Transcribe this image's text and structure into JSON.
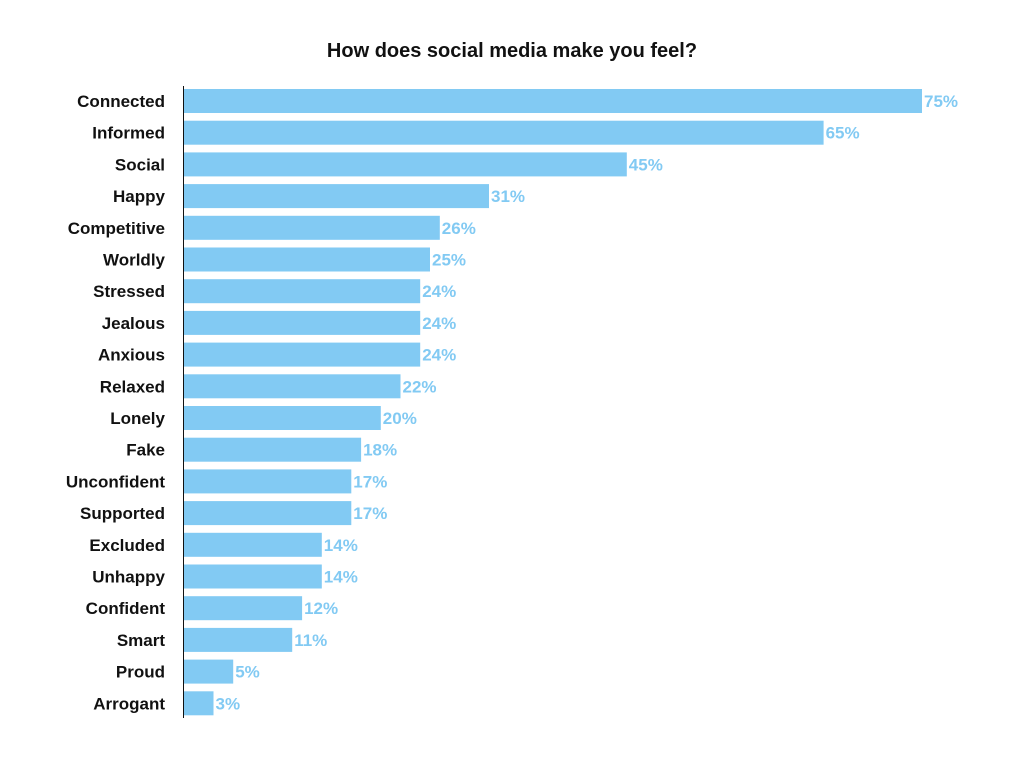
{
  "chart_data": {
    "type": "bar",
    "orientation": "horizontal",
    "title": "How does social media make you feel?",
    "categories": [
      "Connected",
      "Informed",
      "Social",
      "Happy",
      "Competitive",
      "Worldly",
      "Stressed",
      "Jealous",
      "Anxious",
      "Relaxed",
      "Lonely",
      "Fake",
      "Unconfident",
      "Supported",
      "Excluded",
      "Unhappy",
      "Confident",
      "Smart",
      "Proud",
      "Arrogant"
    ],
    "values": [
      75,
      65,
      45,
      31,
      26,
      25,
      24,
      24,
      24,
      22,
      20,
      18,
      17,
      17,
      14,
      14,
      12,
      11,
      5,
      3
    ],
    "value_labels": [
      "75%",
      "65%",
      "45%",
      "31%",
      "26%",
      "25%",
      "24%",
      "24%",
      "24%",
      "22%",
      "20%",
      "18%",
      "17%",
      "17%",
      "14%",
      "14%",
      "12%",
      "11%",
      "5%",
      "3%"
    ],
    "xlim": [
      0,
      75
    ],
    "grid": false,
    "legend": "none",
    "colors": {
      "bar": "#82CAF3",
      "value_label": "#82CAF3",
      "axis": "#111111",
      "text": "#111111"
    }
  }
}
